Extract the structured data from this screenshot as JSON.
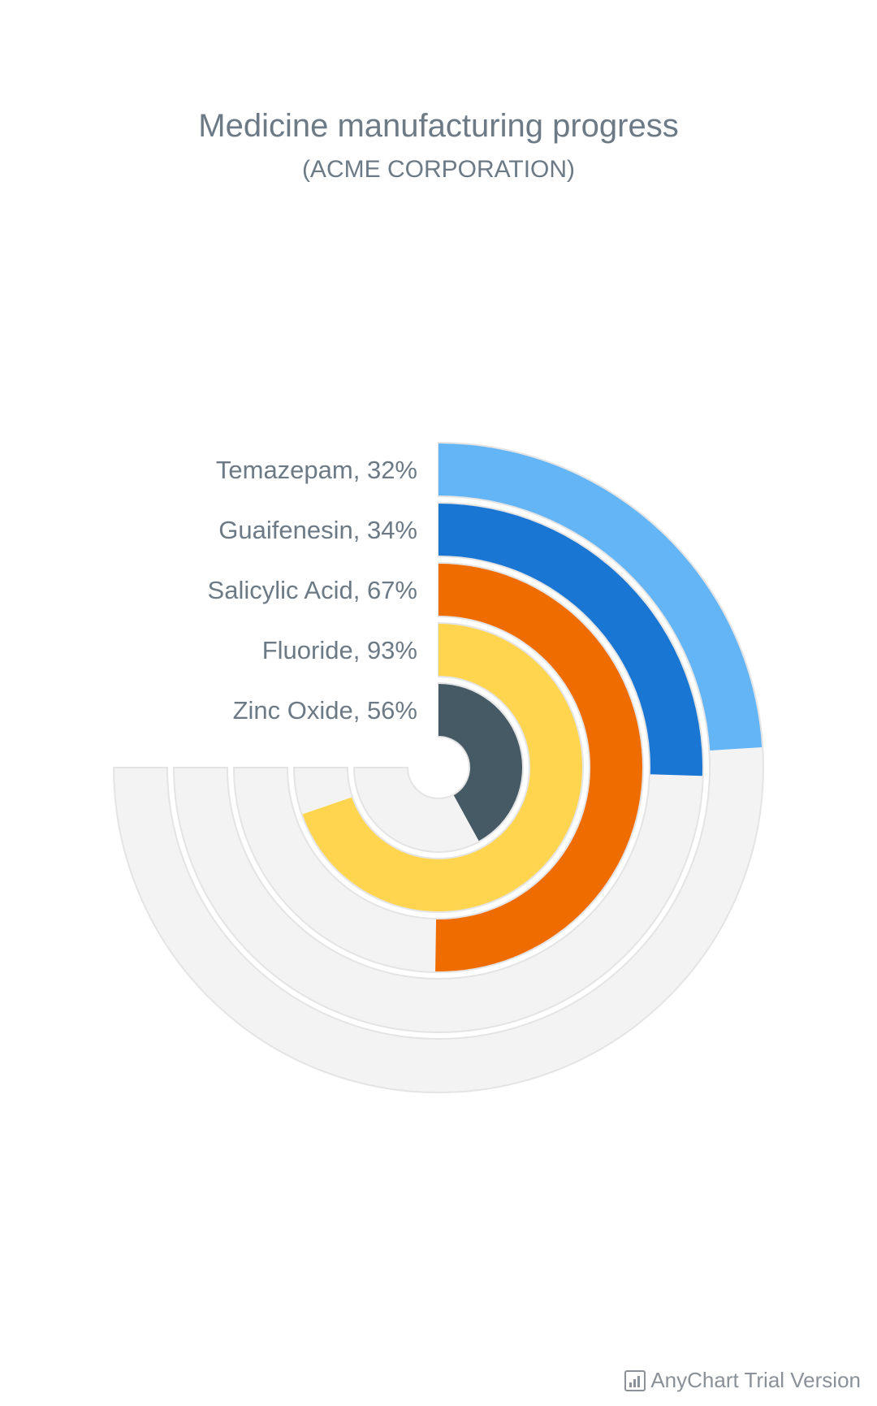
{
  "chart_data": {
    "type": "radial-bar",
    "title": "Medicine manufacturing progress",
    "subtitle": "(ACME CORPORATION)",
    "max_value": 100,
    "track_span_degrees": 270,
    "track_color": "#f3f3f3",
    "track_stroke": "#e4e4e4",
    "series": [
      {
        "name": "Temazepam",
        "value": 32,
        "label": "Temazepam, 32%",
        "color": "#64b5f6"
      },
      {
        "name": "Guaifenesin",
        "value": 34,
        "label": "Guaifenesin, 34%",
        "color": "#1976d2"
      },
      {
        "name": "Salicylic Acid",
        "value": 67,
        "label": "Salicylic Acid, 67%",
        "color": "#ef6c00"
      },
      {
        "name": "Fluoride",
        "value": 93,
        "label": "Fluoride, 93%",
        "color": "#ffd54f"
      },
      {
        "name": "Zinc Oxide",
        "value": 56,
        "label": "Zinc Oxide, 56%",
        "color": "#455a64"
      }
    ]
  },
  "footer": {
    "credit": "AnyChart Trial Version",
    "icon": "bar-chart-icon"
  }
}
